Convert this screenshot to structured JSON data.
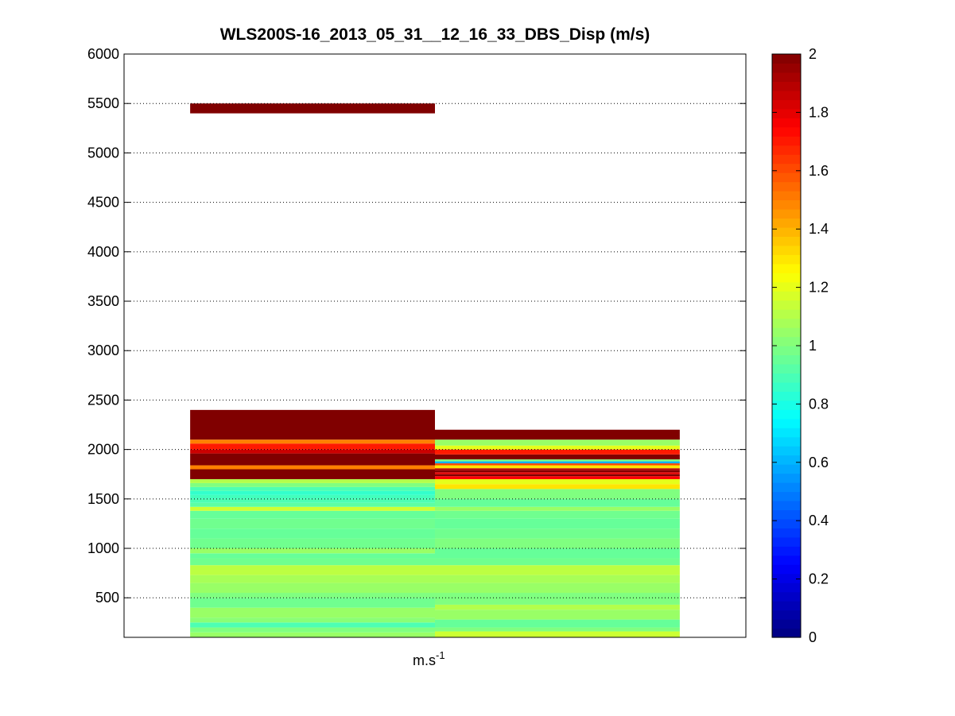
{
  "chart_data": {
    "type": "heatmap",
    "title": "WLS200S-16_2013_05_31__12_16_33_DBS_Disp (m/s)",
    "xlabel": "m.s",
    "xlabel_superscript": "-1",
    "ylabel": "",
    "ylim": [
      100,
      6000
    ],
    "yticks": [
      500,
      1000,
      1500,
      2000,
      2500,
      3000,
      3500,
      4000,
      4500,
      5000,
      5500,
      6000
    ],
    "grid": "horizontal-dotted",
    "colormap": "jet",
    "clim": [
      0,
      2
    ],
    "colorbar_ticks": [
      0,
      0.2,
      0.4,
      0.6,
      0.8,
      1,
      1.2,
      1.4,
      1.6,
      1.8,
      2
    ],
    "colorbar_tick_labels": [
      "0",
      "0.2",
      "0.4",
      "0.6",
      "0.8",
      "1",
      "1.2",
      "1.4",
      "1.6",
      "1.8",
      "2"
    ],
    "columns": [
      {
        "x_range": [
          0.5,
          1.5
        ],
        "cells": [
          {
            "z0": 100,
            "z1": 150,
            "v": 1.05
          },
          {
            "z0": 150,
            "z1": 200,
            "v": 1.0
          },
          {
            "z0": 200,
            "z1": 250,
            "v": 0.9
          },
          {
            "z0": 250,
            "z1": 300,
            "v": 1.02
          },
          {
            "z0": 300,
            "z1": 400,
            "v": 1.05
          },
          {
            "z0": 400,
            "z1": 500,
            "v": 0.97
          },
          {
            "z0": 500,
            "z1": 550,
            "v": 1.0
          },
          {
            "z0": 550,
            "z1": 650,
            "v": 1.05
          },
          {
            "z0": 650,
            "z1": 730,
            "v": 1.08
          },
          {
            "z0": 730,
            "z1": 830,
            "v": 1.12
          },
          {
            "z0": 830,
            "z1": 900,
            "v": 0.97
          },
          {
            "z0": 900,
            "z1": 950,
            "v": 0.95
          },
          {
            "z0": 950,
            "z1": 1000,
            "v": 1.05
          },
          {
            "z0": 1000,
            "z1": 1100,
            "v": 0.97
          },
          {
            "z0": 1100,
            "z1": 1200,
            "v": 0.95
          },
          {
            "z0": 1200,
            "z1": 1300,
            "v": 0.97
          },
          {
            "z0": 1300,
            "z1": 1380,
            "v": 0.95
          },
          {
            "z0": 1380,
            "z1": 1420,
            "v": 1.15
          },
          {
            "z0": 1420,
            "z1": 1460,
            "v": 0.93
          },
          {
            "z0": 1460,
            "z1": 1500,
            "v": 0.9
          },
          {
            "z0": 1500,
            "z1": 1540,
            "v": 0.88
          },
          {
            "z0": 1540,
            "z1": 1580,
            "v": 0.85
          },
          {
            "z0": 1580,
            "z1": 1620,
            "v": 0.9
          },
          {
            "z0": 1620,
            "z1": 1660,
            "v": 1.0
          },
          {
            "z0": 1660,
            "z1": 1700,
            "v": 1.1
          },
          {
            "z0": 1700,
            "z1": 1800,
            "v": 2.0
          },
          {
            "z0": 1800,
            "z1": 1840,
            "v": 1.5
          },
          {
            "z0": 1840,
            "z1": 1960,
            "v": 2.0
          },
          {
            "z0": 1960,
            "z1": 2000,
            "v": 1.85
          },
          {
            "z0": 2000,
            "z1": 2060,
            "v": 1.7
          },
          {
            "z0": 2060,
            "z1": 2100,
            "v": 1.5
          },
          {
            "z0": 2100,
            "z1": 2400,
            "v": 2.0
          },
          {
            "z0": 5400,
            "z1": 5500,
            "v": 2.0
          }
        ]
      },
      {
        "x_range": [
          1.5,
          2.5
        ],
        "cells": [
          {
            "z0": 100,
            "z1": 160,
            "v": 1.15
          },
          {
            "z0": 160,
            "z1": 200,
            "v": 1.0
          },
          {
            "z0": 200,
            "z1": 280,
            "v": 0.95
          },
          {
            "z0": 280,
            "z1": 380,
            "v": 1.05
          },
          {
            "z0": 380,
            "z1": 430,
            "v": 1.1
          },
          {
            "z0": 430,
            "z1": 550,
            "v": 1.0
          },
          {
            "z0": 550,
            "z1": 650,
            "v": 1.05
          },
          {
            "z0": 650,
            "z1": 730,
            "v": 1.08
          },
          {
            "z0": 730,
            "z1": 830,
            "v": 1.12
          },
          {
            "z0": 830,
            "z1": 900,
            "v": 0.97
          },
          {
            "z0": 900,
            "z1": 1000,
            "v": 0.95
          },
          {
            "z0": 1000,
            "z1": 1100,
            "v": 1.0
          },
          {
            "z0": 1100,
            "z1": 1200,
            "v": 0.97
          },
          {
            "z0": 1200,
            "z1": 1300,
            "v": 0.95
          },
          {
            "z0": 1300,
            "z1": 1380,
            "v": 0.97
          },
          {
            "z0": 1380,
            "z1": 1420,
            "v": 1.05
          },
          {
            "z0": 1420,
            "z1": 1500,
            "v": 0.95
          },
          {
            "z0": 1500,
            "z1": 1600,
            "v": 1.0
          },
          {
            "z0": 1600,
            "z1": 1650,
            "v": 1.3
          },
          {
            "z0": 1650,
            "z1": 1700,
            "v": 1.2
          },
          {
            "z0": 1700,
            "z1": 1730,
            "v": 1.75
          },
          {
            "z0": 1730,
            "z1": 1750,
            "v": 2.0
          },
          {
            "z0": 1750,
            "z1": 1770,
            "v": 1.8
          },
          {
            "z0": 1770,
            "z1": 1790,
            "v": 2.0
          },
          {
            "z0": 1790,
            "z1": 1810,
            "v": 1.9
          },
          {
            "z0": 1810,
            "z1": 1840,
            "v": 1.3
          },
          {
            "z0": 1840,
            "z1": 1860,
            "v": 1.6
          },
          {
            "z0": 1860,
            "z1": 1880,
            "v": 0.6
          },
          {
            "z0": 1880,
            "z1": 1900,
            "v": 1.0
          },
          {
            "z0": 1900,
            "z1": 1950,
            "v": 2.0
          },
          {
            "z0": 1950,
            "z1": 2000,
            "v": 1.7
          },
          {
            "z0": 2000,
            "z1": 2040,
            "v": 1.2
          },
          {
            "z0": 2040,
            "z1": 2100,
            "v": 1.05
          },
          {
            "z0": 2100,
            "z1": 2200,
            "v": 2.0
          }
        ]
      }
    ]
  }
}
